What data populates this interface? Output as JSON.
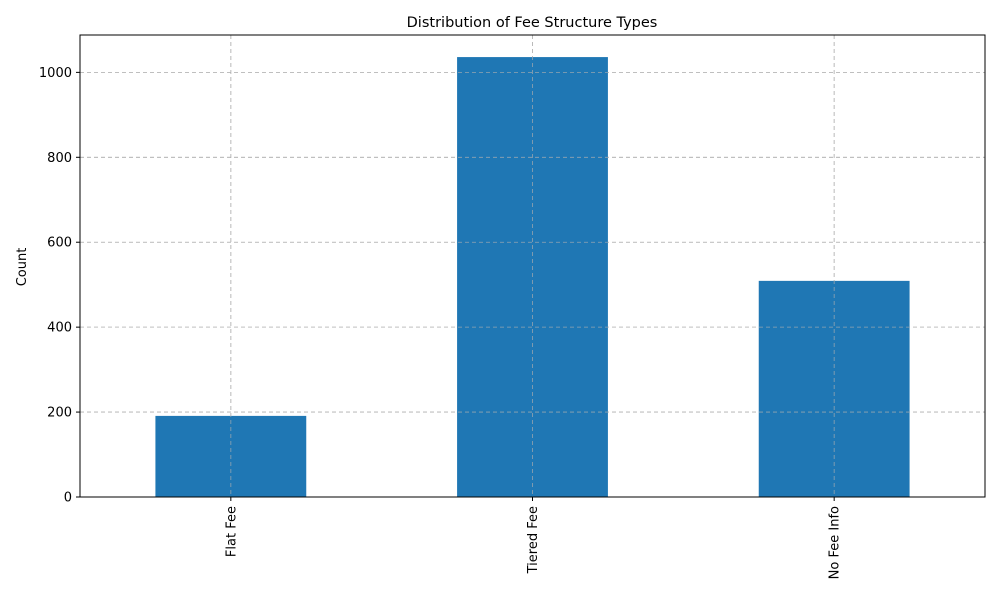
{
  "chart_data": {
    "type": "bar",
    "title": "Distribution of Fee Structure Types",
    "xlabel": "",
    "ylabel": "Count",
    "categories": [
      "Flat Fee",
      "Tiered Fee",
      "No Fee Info"
    ],
    "values": [
      191,
      1036,
      509
    ],
    "ylim": [
      0,
      1088
    ],
    "yticks": [
      0,
      200,
      400,
      600,
      800,
      1000
    ],
    "grid": true,
    "legend": "none",
    "bar_color": "#1f77b4"
  }
}
